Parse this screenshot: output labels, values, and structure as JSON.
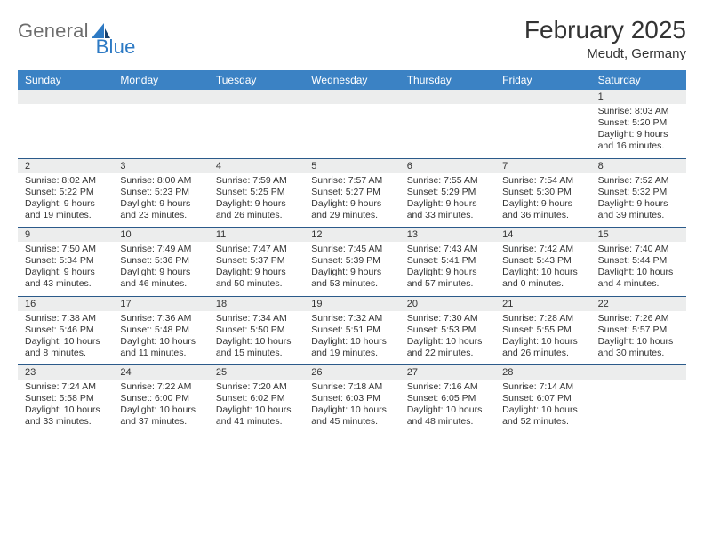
{
  "brand": {
    "part1": "General",
    "part2": "Blue"
  },
  "header": {
    "month": "February 2025",
    "location": "Meudt, Germany"
  },
  "colors": {
    "header_bg": "#3b82c4",
    "header_text": "#ffffff",
    "band_bg": "#eceded",
    "divider": "#2b5a8a",
    "logo_gray": "#6d6d6d",
    "logo_blue": "#2d7ac4"
  },
  "dayNames": [
    "Sunday",
    "Monday",
    "Tuesday",
    "Wednesday",
    "Thursday",
    "Friday",
    "Saturday"
  ],
  "weeks": [
    [
      {
        "num": "",
        "sunrise": "",
        "sunset": "",
        "daylight": ""
      },
      {
        "num": "",
        "sunrise": "",
        "sunset": "",
        "daylight": ""
      },
      {
        "num": "",
        "sunrise": "",
        "sunset": "",
        "daylight": ""
      },
      {
        "num": "",
        "sunrise": "",
        "sunset": "",
        "daylight": ""
      },
      {
        "num": "",
        "sunrise": "",
        "sunset": "",
        "daylight": ""
      },
      {
        "num": "",
        "sunrise": "",
        "sunset": "",
        "daylight": ""
      },
      {
        "num": "1",
        "sunrise": "Sunrise: 8:03 AM",
        "sunset": "Sunset: 5:20 PM",
        "daylight": "Daylight: 9 hours and 16 minutes."
      }
    ],
    [
      {
        "num": "2",
        "sunrise": "Sunrise: 8:02 AM",
        "sunset": "Sunset: 5:22 PM",
        "daylight": "Daylight: 9 hours and 19 minutes."
      },
      {
        "num": "3",
        "sunrise": "Sunrise: 8:00 AM",
        "sunset": "Sunset: 5:23 PM",
        "daylight": "Daylight: 9 hours and 23 minutes."
      },
      {
        "num": "4",
        "sunrise": "Sunrise: 7:59 AM",
        "sunset": "Sunset: 5:25 PM",
        "daylight": "Daylight: 9 hours and 26 minutes."
      },
      {
        "num": "5",
        "sunrise": "Sunrise: 7:57 AM",
        "sunset": "Sunset: 5:27 PM",
        "daylight": "Daylight: 9 hours and 29 minutes."
      },
      {
        "num": "6",
        "sunrise": "Sunrise: 7:55 AM",
        "sunset": "Sunset: 5:29 PM",
        "daylight": "Daylight: 9 hours and 33 minutes."
      },
      {
        "num": "7",
        "sunrise": "Sunrise: 7:54 AM",
        "sunset": "Sunset: 5:30 PM",
        "daylight": "Daylight: 9 hours and 36 minutes."
      },
      {
        "num": "8",
        "sunrise": "Sunrise: 7:52 AM",
        "sunset": "Sunset: 5:32 PM",
        "daylight": "Daylight: 9 hours and 39 minutes."
      }
    ],
    [
      {
        "num": "9",
        "sunrise": "Sunrise: 7:50 AM",
        "sunset": "Sunset: 5:34 PM",
        "daylight": "Daylight: 9 hours and 43 minutes."
      },
      {
        "num": "10",
        "sunrise": "Sunrise: 7:49 AM",
        "sunset": "Sunset: 5:36 PM",
        "daylight": "Daylight: 9 hours and 46 minutes."
      },
      {
        "num": "11",
        "sunrise": "Sunrise: 7:47 AM",
        "sunset": "Sunset: 5:37 PM",
        "daylight": "Daylight: 9 hours and 50 minutes."
      },
      {
        "num": "12",
        "sunrise": "Sunrise: 7:45 AM",
        "sunset": "Sunset: 5:39 PM",
        "daylight": "Daylight: 9 hours and 53 minutes."
      },
      {
        "num": "13",
        "sunrise": "Sunrise: 7:43 AM",
        "sunset": "Sunset: 5:41 PM",
        "daylight": "Daylight: 9 hours and 57 minutes."
      },
      {
        "num": "14",
        "sunrise": "Sunrise: 7:42 AM",
        "sunset": "Sunset: 5:43 PM",
        "daylight": "Daylight: 10 hours and 0 minutes."
      },
      {
        "num": "15",
        "sunrise": "Sunrise: 7:40 AM",
        "sunset": "Sunset: 5:44 PM",
        "daylight": "Daylight: 10 hours and 4 minutes."
      }
    ],
    [
      {
        "num": "16",
        "sunrise": "Sunrise: 7:38 AM",
        "sunset": "Sunset: 5:46 PM",
        "daylight": "Daylight: 10 hours and 8 minutes."
      },
      {
        "num": "17",
        "sunrise": "Sunrise: 7:36 AM",
        "sunset": "Sunset: 5:48 PM",
        "daylight": "Daylight: 10 hours and 11 minutes."
      },
      {
        "num": "18",
        "sunrise": "Sunrise: 7:34 AM",
        "sunset": "Sunset: 5:50 PM",
        "daylight": "Daylight: 10 hours and 15 minutes."
      },
      {
        "num": "19",
        "sunrise": "Sunrise: 7:32 AM",
        "sunset": "Sunset: 5:51 PM",
        "daylight": "Daylight: 10 hours and 19 minutes."
      },
      {
        "num": "20",
        "sunrise": "Sunrise: 7:30 AM",
        "sunset": "Sunset: 5:53 PM",
        "daylight": "Daylight: 10 hours and 22 minutes."
      },
      {
        "num": "21",
        "sunrise": "Sunrise: 7:28 AM",
        "sunset": "Sunset: 5:55 PM",
        "daylight": "Daylight: 10 hours and 26 minutes."
      },
      {
        "num": "22",
        "sunrise": "Sunrise: 7:26 AM",
        "sunset": "Sunset: 5:57 PM",
        "daylight": "Daylight: 10 hours and 30 minutes."
      }
    ],
    [
      {
        "num": "23",
        "sunrise": "Sunrise: 7:24 AM",
        "sunset": "Sunset: 5:58 PM",
        "daylight": "Daylight: 10 hours and 33 minutes."
      },
      {
        "num": "24",
        "sunrise": "Sunrise: 7:22 AM",
        "sunset": "Sunset: 6:00 PM",
        "daylight": "Daylight: 10 hours and 37 minutes."
      },
      {
        "num": "25",
        "sunrise": "Sunrise: 7:20 AM",
        "sunset": "Sunset: 6:02 PM",
        "daylight": "Daylight: 10 hours and 41 minutes."
      },
      {
        "num": "26",
        "sunrise": "Sunrise: 7:18 AM",
        "sunset": "Sunset: 6:03 PM",
        "daylight": "Daylight: 10 hours and 45 minutes."
      },
      {
        "num": "27",
        "sunrise": "Sunrise: 7:16 AM",
        "sunset": "Sunset: 6:05 PM",
        "daylight": "Daylight: 10 hours and 48 minutes."
      },
      {
        "num": "28",
        "sunrise": "Sunrise: 7:14 AM",
        "sunset": "Sunset: 6:07 PM",
        "daylight": "Daylight: 10 hours and 52 minutes."
      },
      {
        "num": "",
        "sunrise": "",
        "sunset": "",
        "daylight": ""
      }
    ]
  ]
}
